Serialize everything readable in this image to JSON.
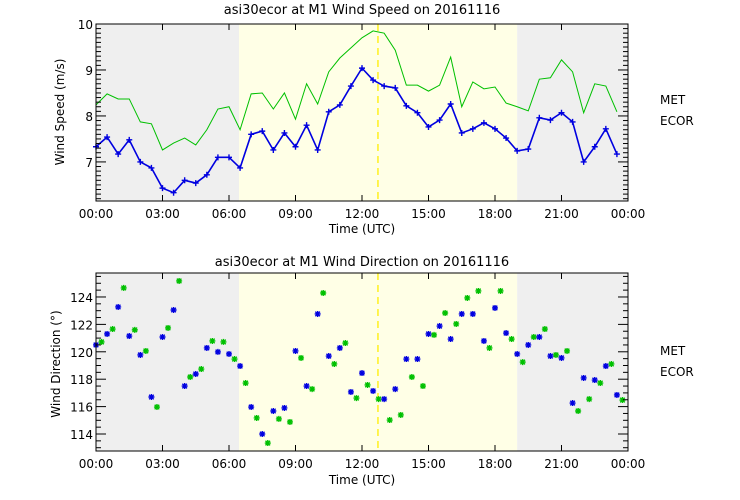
{
  "chart_data": [
    {
      "type": "line",
      "title": "asi30ecor at M1 Wind Speed on 20161116",
      "xlabel": "Time (UTC)",
      "ylabel": "Wind Speed (m/s)",
      "xlim": [
        0,
        24
      ],
      "ylim": [
        6.15,
        10
      ],
      "x_tick_labels": [
        "00:00",
        "03:00",
        "06:00",
        "09:00",
        "12:00",
        "15:00",
        "18:00",
        "21:00",
        "00:00"
      ],
      "y_ticks": [
        7,
        8,
        9,
        10
      ],
      "y_tick_labels": [
        "7",
        "8",
        "9",
        "10"
      ],
      "daylight_span_hours": [
        6.45,
        19.0
      ],
      "marker_line_hour": 12.72,
      "legend": [
        "MET",
        "ECOR"
      ],
      "legend_position": "right",
      "x_step_hours": 0.5,
      "series": [
        {
          "name": "MET",
          "color": "#00c000",
          "x_offset_hours": 0,
          "values": [
            8.24,
            8.48,
            8.37,
            8.37,
            7.87,
            7.83,
            7.26,
            7.41,
            7.52,
            7.37,
            7.7,
            8.15,
            8.2,
            7.7,
            8.48,
            8.5,
            8.15,
            8.5,
            7.93,
            8.7,
            8.26,
            8.96,
            9.26,
            9.48,
            9.7,
            9.85,
            9.8,
            9.43,
            8.67,
            8.67,
            8.54,
            8.67,
            9.28,
            8.2,
            8.74,
            8.59,
            8.63,
            8.28,
            8.2,
            8.11,
            8.8,
            8.83,
            9.22,
            8.96,
            8.07,
            8.7,
            8.65,
            8.09
          ]
        },
        {
          "name": "ECOR",
          "color": "#0000e0",
          "x_offset_hours": 0,
          "values": [
            7.33,
            7.54,
            7.17,
            7.48,
            7.0,
            6.87,
            6.43,
            6.33,
            6.6,
            6.54,
            6.72,
            7.1,
            7.1,
            6.87,
            7.6,
            7.67,
            7.26,
            7.63,
            7.33,
            7.8,
            7.26,
            8.09,
            8.24,
            8.65,
            9.04,
            8.78,
            8.65,
            8.61,
            8.22,
            8.07,
            7.76,
            7.91,
            8.26,
            7.63,
            7.72,
            7.85,
            7.72,
            7.52,
            7.24,
            7.28,
            7.96,
            7.91,
            8.07,
            7.87,
            7.0,
            7.33,
            7.72,
            7.17
          ]
        }
      ]
    },
    {
      "type": "scatter",
      "title": "asi30ecor at M1 Wind Direction on 20161116",
      "xlabel": "Time (UTC)",
      "ylabel": "Wind Direction (°)",
      "xlim": [
        0,
        24
      ],
      "ylim": [
        112.76,
        125.75
      ],
      "x_tick_labels": [
        "00:00",
        "03:00",
        "06:00",
        "09:00",
        "12:00",
        "15:00",
        "18:00",
        "21:00",
        "00:00"
      ],
      "y_ticks": [
        114,
        116,
        118,
        120,
        122,
        124
      ],
      "y_tick_labels": [
        "114",
        "116",
        "118",
        "120",
        "122",
        "124"
      ],
      "daylight_span_hours": [
        6.45,
        19.0
      ],
      "marker_line_hour": 12.72,
      "legend": [
        "MET",
        "ECOR"
      ],
      "legend_position": "right",
      "x_step_hours": 0.5,
      "series": [
        {
          "name": "MET",
          "color": "#00c000",
          "x_offset_hours": 0.25,
          "values": [
            120.72,
            121.66,
            124.66,
            121.6,
            120.06,
            115.97,
            121.74,
            125.17,
            118.16,
            118.74,
            120.79,
            120.72,
            119.47,
            117.72,
            115.17,
            113.34,
            115.1,
            114.88,
            119.55,
            117.28,
            124.29,
            119.11,
            120.64,
            116.62,
            117.58,
            116.55,
            115.02,
            115.39,
            118.16,
            117.5,
            121.23,
            122.83,
            122.03,
            123.93,
            124.44,
            120.28,
            124.44,
            120.93,
            119.25,
            121.08,
            121.66,
            119.77,
            120.06,
            115.68,
            116.55,
            117.72,
            119.11,
            116.48
          ]
        },
        {
          "name": "ECOR",
          "color": "#0000e0",
          "x_offset_hours": 0,
          "values": [
            120.5,
            121.3,
            123.27,
            121.15,
            119.77,
            116.7,
            121.08,
            123.05,
            117.5,
            118.38,
            120.28,
            119.99,
            119.84,
            118.96,
            115.97,
            114.0,
            115.68,
            115.9,
            120.06,
            117.5,
            122.76,
            119.69,
            120.28,
            117.07,
            118.45,
            117.14,
            116.55,
            117.28,
            119.47,
            119.47,
            121.3,
            121.88,
            120.93,
            122.76,
            122.76,
            120.79,
            123.2,
            121.37,
            119.84,
            120.5,
            121.08,
            119.69,
            119.55,
            116.26,
            118.09,
            117.94,
            118.96,
            116.85
          ]
        }
      ]
    }
  ],
  "colors": {
    "night_bg": "#efefef",
    "day_bg": "#ffffe6",
    "marker_line": "#ffee00"
  }
}
